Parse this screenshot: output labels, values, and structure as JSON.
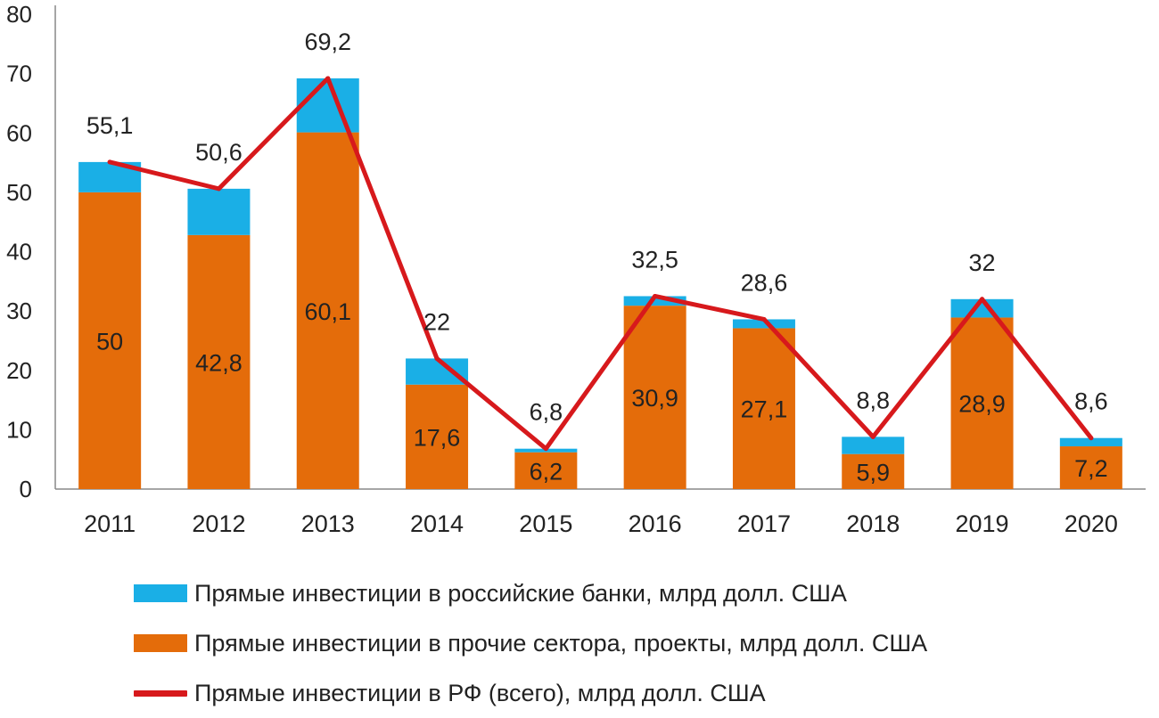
{
  "chart_data": {
    "type": "bar",
    "stacked": true,
    "categories": [
      "2011",
      "2012",
      "2013",
      "2014",
      "2015",
      "2016",
      "2017",
      "2018",
      "2019",
      "2020"
    ],
    "ylim": [
      0,
      80
    ],
    "yticks": [
      "0",
      "10",
      "20",
      "30",
      "40",
      "50",
      "60",
      "70",
      "80"
    ],
    "ytick_values": [
      0,
      10,
      20,
      30,
      40,
      50,
      60,
      70,
      80
    ],
    "series": [
      {
        "name": "Прямые инвестиции в прочие сектора, проекты, млрд долл. США",
        "kind": "bar",
        "color": "#E46C0A",
        "values": [
          50,
          42.8,
          60.1,
          17.6,
          6.2,
          30.9,
          27.1,
          5.9,
          28.9,
          7.2
        ],
        "labels": [
          "50",
          "42,8",
          "60,1",
          "17,6",
          "6,2",
          "30,9",
          "27,1",
          "5,9",
          "28,9",
          "7,2"
        ]
      },
      {
        "name": "Прямые инвестиции в российские банки, млрд долл. США",
        "kind": "bar",
        "color": "#1AAFE6",
        "values": [
          5.1,
          7.8,
          9.1,
          4.4,
          0.6,
          1.6,
          1.5,
          2.9,
          3.1,
          1.4
        ]
      },
      {
        "name": "Прямые инвестиции в РФ (всего), млрд долл. США",
        "kind": "line",
        "color": "#D7191C",
        "values": [
          55.1,
          50.6,
          69.2,
          22,
          6.8,
          32.5,
          28.6,
          8.8,
          32,
          8.6
        ],
        "labels": [
          "55,1",
          "50,6",
          "69,2",
          "22",
          "6,8",
          "32,5",
          "28,6",
          "8,8",
          "32",
          "8,6"
        ]
      }
    ],
    "grid": false,
    "legend_position": "bottom-left"
  },
  "legend": {
    "banks": "Прямые инвестиции в российские банки, млрд долл. США",
    "other": "Прямые инвестиции в прочие сектора, проекты, млрд долл. США",
    "total": "Прямые инвестиции в РФ (всего), млрд долл. США"
  },
  "colors": {
    "other": "#E46C0A",
    "banks": "#1AAFE6",
    "total": "#D7191C"
  }
}
